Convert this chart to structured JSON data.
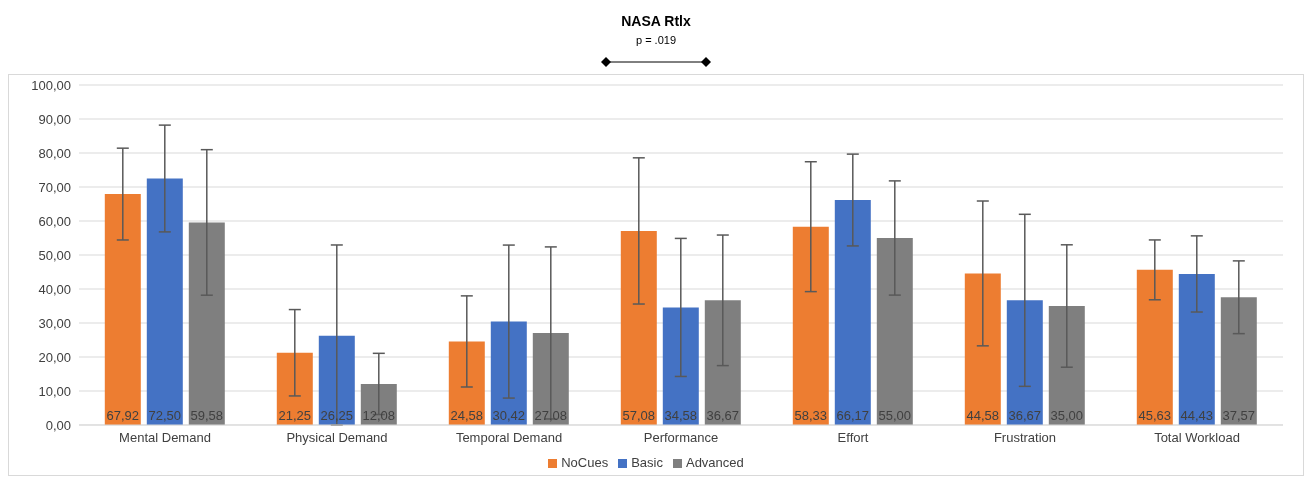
{
  "chart_data": {
    "type": "bar",
    "title": "NASA Rtlx",
    "annotations": [
      "p = .019"
    ],
    "categories": [
      "Mental Demand",
      "Physical Demand",
      "Temporal Demand",
      "Performance",
      "Effort",
      "Frustration",
      "Total Workload"
    ],
    "series": [
      {
        "name": "NoCues",
        "color": "#ed7d31",
        "values": [
          67.92,
          21.25,
          24.58,
          57.08,
          58.33,
          44.58,
          45.63
        ],
        "value_labels": [
          "67,92",
          "21,25",
          "24,58",
          "57,08",
          "58,33",
          "44,58",
          "45,63"
        ],
        "errors": [
          13.5,
          12.7,
          13.4,
          21.5,
          19.1,
          21.3,
          8.8
        ]
      },
      {
        "name": "Basic",
        "color": "#4472c4",
        "values": [
          72.5,
          26.25,
          30.42,
          34.58,
          66.17,
          36.67,
          44.43
        ],
        "value_labels": [
          "72,50",
          "26,25",
          "30,42",
          "34,58",
          "66,17",
          "36,67",
          "44,43"
        ],
        "errors": [
          15.7,
          [
            26.25,
            26.7
          ],
          22.5,
          20.3,
          13.5,
          25.3,
          11.2
        ]
      },
      {
        "name": "Advanced",
        "color": "#7f7f7f",
        "values": [
          59.58,
          12.08,
          27.08,
          36.67,
          55.0,
          35.0,
          37.57
        ],
        "value_labels": [
          "59,58",
          "12,08",
          "27,08",
          "36,67",
          "55,00",
          "35,00",
          "37,57"
        ],
        "errors": [
          21.4,
          9,
          25.3,
          19.2,
          16.8,
          18,
          10.7
        ]
      }
    ],
    "ylim": [
      0,
      100
    ],
    "yticks": [
      {
        "value": 0,
        "label": "0,00"
      },
      {
        "value": 10,
        "label": "10,00"
      },
      {
        "value": 20,
        "label": "20,00"
      },
      {
        "value": 30,
        "label": "30,00"
      },
      {
        "value": 40,
        "label": "40,00"
      },
      {
        "value": 50,
        "label": "50,00"
      },
      {
        "value": 60,
        "label": "60,00"
      },
      {
        "value": 70,
        "label": "70,00"
      },
      {
        "value": 80,
        "label": "80,00"
      },
      {
        "value": 90,
        "label": "90,00"
      },
      {
        "value": 100,
        "label": "100,00"
      }
    ],
    "grid": "y",
    "legend": "bottom"
  }
}
